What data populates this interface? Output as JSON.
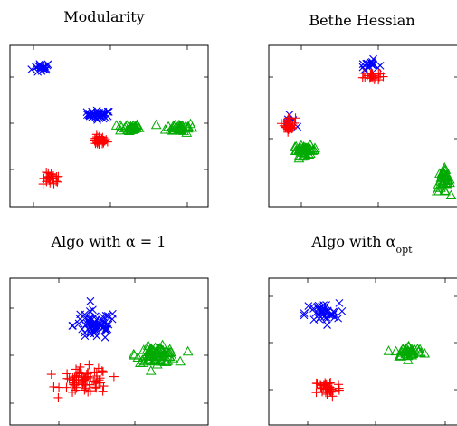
{
  "figure_titles": [
    "Modularity",
    "Bethe Hessian",
    "Algo with α = 1",
    "Algo with α"
  ],
  "title_subscript_opt": "opt",
  "colors": {
    "class_1": "#0000ff",
    "class_2": "#ff0000",
    "class_3": "#00aa00"
  },
  "markers": {
    "class_1": "x-mark",
    "class_2": "plus-mark",
    "class_3": "triangle-mark"
  },
  "chart_data": [
    {
      "type": "scatter",
      "title": "Modularity",
      "grid": false,
      "legend": "none",
      "xlim": [
        0,
        10
      ],
      "ylim": [
        0,
        10
      ],
      "series": [
        {
          "color": "#0000ff",
          "marker": "x",
          "clusters": [
            {
              "center": [
                1.6,
                8.6
              ],
              "spread": [
                0.5,
                0.35
              ],
              "n": 18
            },
            {
              "center": [
                4.5,
                5.7
              ],
              "spread": [
                0.6,
                0.25
              ],
              "n": 40
            }
          ]
        },
        {
          "color": "#ff0000",
          "marker": "+",
          "clusters": [
            {
              "center": [
                4.5,
                4.1
              ],
              "spread": [
                0.4,
                0.3
              ],
              "n": 30
            },
            {
              "center": [
                2.1,
                1.7
              ],
              "spread": [
                0.45,
                0.4
              ],
              "n": 20
            }
          ]
        },
        {
          "color": "#00aa00",
          "marker": "triangle",
          "clusters": [
            {
              "center": [
                6.0,
                4.9
              ],
              "spread": [
                0.55,
                0.25
              ],
              "n": 30
            },
            {
              "center": [
                8.6,
                4.9
              ],
              "spread": [
                0.7,
                0.3
              ],
              "n": 40
            }
          ]
        }
      ]
    },
    {
      "type": "scatter",
      "title": "Bethe Hessian",
      "grid": false,
      "legend": "none",
      "xlim": [
        0,
        10
      ],
      "ylim": [
        0,
        10
      ],
      "series": [
        {
          "color": "#0000ff",
          "marker": "x",
          "clusters": [
            {
              "center": [
                5.3,
                8.8
              ],
              "spread": [
                0.5,
                0.3
              ],
              "n": 18
            },
            {
              "center": [
                1.1,
                5.3
              ],
              "spread": [
                0.3,
                0.35
              ],
              "n": 8
            }
          ]
        },
        {
          "color": "#ff0000",
          "marker": "+",
          "clusters": [
            {
              "center": [
                5.4,
                8.1
              ],
              "spread": [
                0.45,
                0.3
              ],
              "n": 25
            },
            {
              "center": [
                1.1,
                5.1
              ],
              "spread": [
                0.3,
                0.45
              ],
              "n": 30
            }
          ]
        },
        {
          "color": "#00aa00",
          "marker": "triangle",
          "clusters": [
            {
              "center": [
                1.9,
                3.5
              ],
              "spread": [
                0.6,
                0.3
              ],
              "n": 45
            },
            {
              "center": [
                9.2,
                1.6
              ],
              "spread": [
                0.35,
                0.7
              ],
              "n": 40
            }
          ]
        }
      ]
    },
    {
      "type": "scatter",
      "title": "Algo with α = 1",
      "grid": false,
      "legend": "none",
      "xlim": [
        0,
        10
      ],
      "ylim": [
        0,
        10
      ],
      "series": [
        {
          "color": "#0000ff",
          "marker": "x",
          "clusters": [
            {
              "center": [
                4.3,
                6.8
              ],
              "spread": [
                1.1,
                1.0
              ],
              "n": 65
            }
          ]
        },
        {
          "color": "#ff0000",
          "marker": "+",
          "clusters": [
            {
              "center": [
                3.8,
                3.0
              ],
              "spread": [
                1.2,
                0.9
              ],
              "n": 70
            }
          ]
        },
        {
          "color": "#00aa00",
          "marker": "triangle",
          "clusters": [
            {
              "center": [
                7.4,
                4.8
              ],
              "spread": [
                1.0,
                0.55
              ],
              "n": 80
            }
          ]
        }
      ]
    },
    {
      "type": "scatter",
      "title": "Algo with α opt",
      "grid": false,
      "legend": "none",
      "xlim": [
        0,
        10
      ],
      "ylim": [
        0,
        10
      ],
      "series": [
        {
          "color": "#0000ff",
          "marker": "x",
          "clusters": [
            {
              "center": [
                2.8,
                7.6
              ],
              "spread": [
                0.9,
                0.7
              ],
              "n": 40
            }
          ]
        },
        {
          "color": "#ff0000",
          "marker": "+",
          "clusters": [
            {
              "center": [
                3.1,
                2.5
              ],
              "spread": [
                0.7,
                0.6
              ],
              "n": 40
            }
          ]
        },
        {
          "color": "#00aa00",
          "marker": "triangle",
          "clusters": [
            {
              "center": [
                7.4,
                5.0
              ],
              "spread": [
                0.75,
                0.4
              ],
              "n": 45
            }
          ]
        }
      ]
    }
  ]
}
